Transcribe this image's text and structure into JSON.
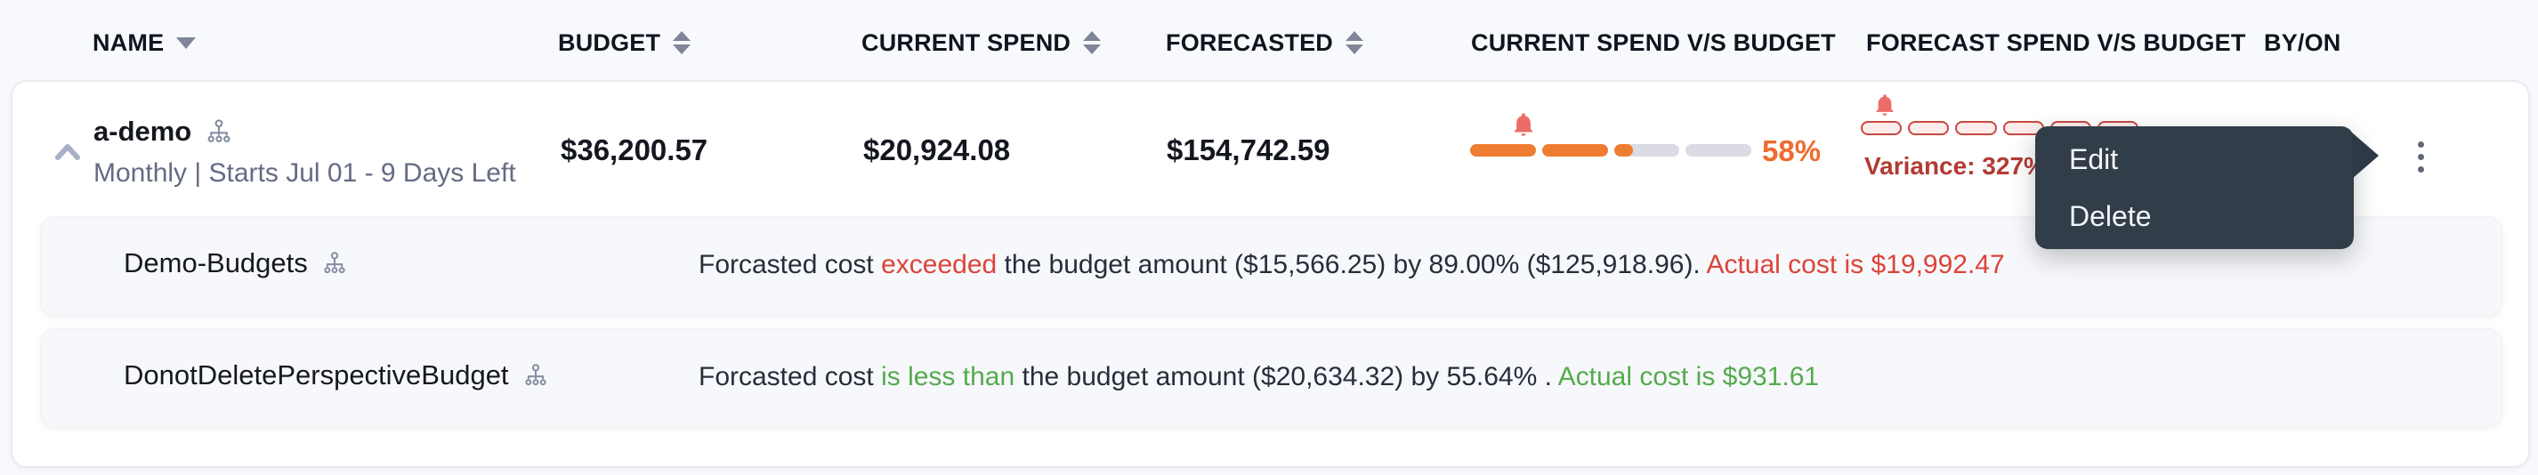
{
  "header": {
    "name": "NAME",
    "budget": "BUDGET",
    "current_spend": "CURRENT SPEND",
    "forecasted": "FORECASTED",
    "current_vs_budget": "CURRENT SPEND V/S BUDGET",
    "forecast_vs_budget": "FORECAST SPEND V/S BUDGET",
    "by_on": "BY/ON"
  },
  "budget_row": {
    "name": "a-demo",
    "schedule": "Monthly | Starts Jul 01 - 9 Days Left",
    "budget": "$36,200.57",
    "current_spend": "$20,924.08",
    "forecasted": "$154,742.59",
    "current_spend_pct_label": "58%",
    "variance_label": "Variance: 327%"
  },
  "bars": {
    "current": {
      "percent": 58,
      "segments": 4,
      "alert_percent": 19,
      "style": "filled"
    },
    "forecast": {
      "percent": 0,
      "segments": 6,
      "alert_percent": 8.5,
      "style": "outline"
    }
  },
  "context_menu": {
    "items": [
      {
        "label": "Edit"
      },
      {
        "label": "Delete"
      }
    ]
  },
  "sub_rows": [
    {
      "name": "Demo-Budgets",
      "text_prefix": "Forcasted cost ",
      "status": "exceeded",
      "text_middle": " the budget amount ($15,566.25) by 89.00% ($125,918.96). ",
      "actual": "Actual cost is $19,992.47",
      "tone": "over"
    },
    {
      "name": "DonotDeletePerspectiveBudget",
      "text_prefix": "Forcasted cost ",
      "status": "is less than",
      "text_middle": " the budget amount ($20,634.32) by 55.64% . ",
      "actual": "Actual cost is $931.61",
      "tone": "under"
    }
  ],
  "colors": {
    "accent_orange": "#ee7d31",
    "pct_orange": "#ed6c2e",
    "alert_bell_red": "#ec6d68",
    "variance_red": "#b23b33",
    "over_red": "#dc4438",
    "under_green": "#54ab4e",
    "menu_bg": "#313d48",
    "track_gray": "#dbdce3",
    "forecast_fill": "#fcedec",
    "forecast_border": "#c7493f"
  }
}
